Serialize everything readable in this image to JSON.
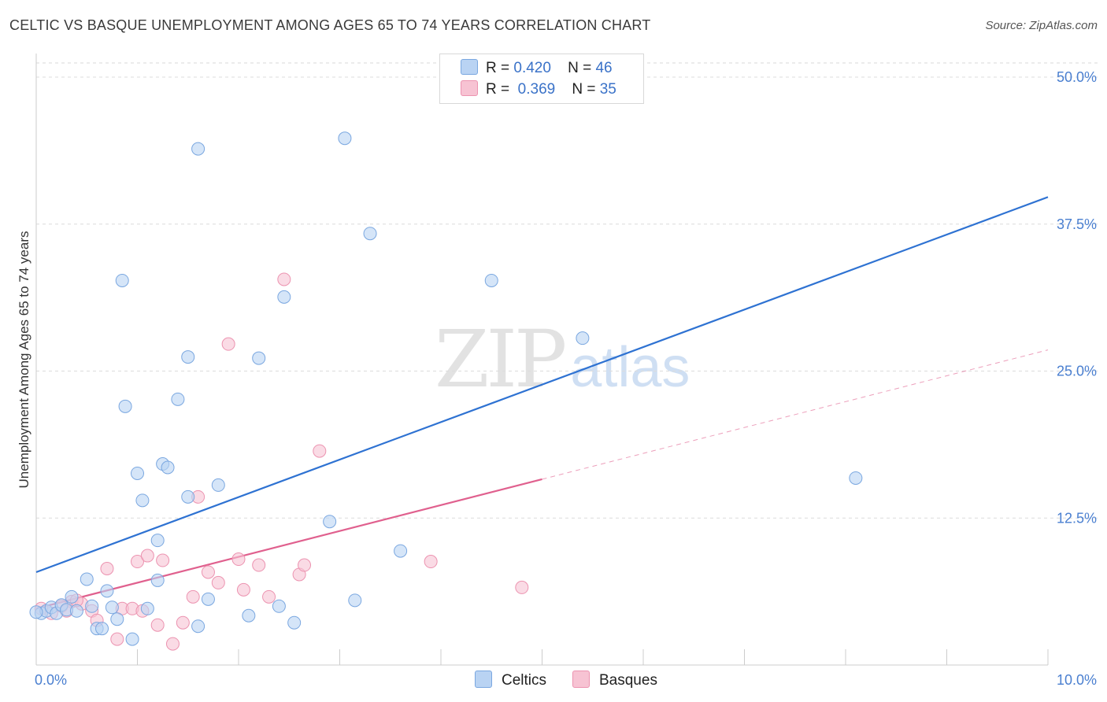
{
  "header": {
    "title": "CELTIC VS BASQUE UNEMPLOYMENT AMONG AGES 65 TO 74 YEARS CORRELATION CHART",
    "source": "Source: ZipAtlas.com"
  },
  "legend_top": {
    "rows": [
      {
        "r_label": "R =",
        "r_value": "0.420",
        "n_label": "N =",
        "n_value": "46"
      },
      {
        "r_label": "R =",
        "r_value": "0.369",
        "n_label": "N =",
        "n_value": "35"
      }
    ]
  },
  "legend_bottom": {
    "celtics": "Celtics",
    "basques": "Basques"
  },
  "watermark": {
    "zip": "ZIP",
    "atlas": "atlas"
  },
  "colors": {
    "celtics_fill": "#b9d3f3",
    "celtics_stroke": "#7aa7e0",
    "celtics_line": "#2e72d2",
    "basques_fill": "#f7c3d3",
    "basques_stroke": "#ec93b0",
    "basques_line": "#e0608e",
    "tick_text": "#4a7fd0"
  },
  "chart_data": {
    "type": "scatter",
    "title": "CELTIC VS BASQUE UNEMPLOYMENT AMONG AGES 65 TO 74 YEARS CORRELATION CHART",
    "xlabel": "",
    "ylabel": "Unemployment Among Ages 65 to 74 years",
    "xlim": [
      0,
      10
    ],
    "ylim": [
      0,
      50
    ],
    "x_tick_labels": [
      "0.0%",
      "10.0%"
    ],
    "y_ticks": [
      12.5,
      25.0,
      37.5,
      50.0
    ],
    "y_tick_labels": [
      "12.5%",
      "25.0%",
      "37.5%",
      "50.0%"
    ],
    "grid": true,
    "series": [
      {
        "name": "Celtics",
        "r": 0.42,
        "n": 46,
        "trend": {
          "x0": 0,
          "y0": 7.9,
          "x1": 10,
          "y1": 39.8
        },
        "points": [
          [
            0.05,
            4.4
          ],
          [
            0.1,
            4.6
          ],
          [
            0.15,
            4.9
          ],
          [
            0.2,
            4.4
          ],
          [
            0.25,
            5.1
          ],
          [
            0.3,
            4.7
          ],
          [
            0.35,
            5.8
          ],
          [
            0.4,
            4.6
          ],
          [
            0.5,
            7.3
          ],
          [
            0.55,
            5.0
          ],
          [
            0.6,
            3.1
          ],
          [
            0.65,
            3.1
          ],
          [
            0.7,
            6.3
          ],
          [
            0.75,
            4.9
          ],
          [
            0.8,
            3.9
          ],
          [
            0.85,
            32.7
          ],
          [
            0.88,
            22.0
          ],
          [
            0.95,
            2.2
          ],
          [
            1.0,
            16.3
          ],
          [
            1.05,
            14.0
          ],
          [
            1.1,
            4.8
          ],
          [
            1.2,
            7.2
          ],
          [
            1.2,
            10.6
          ],
          [
            1.25,
            17.1
          ],
          [
            1.3,
            16.8
          ],
          [
            1.4,
            22.6
          ],
          [
            1.5,
            26.2
          ],
          [
            1.5,
            14.3
          ],
          [
            1.6,
            3.3
          ],
          [
            1.6,
            43.9
          ],
          [
            1.7,
            5.6
          ],
          [
            1.8,
            15.3
          ],
          [
            2.1,
            4.2
          ],
          [
            2.2,
            26.1
          ],
          [
            2.4,
            5.0
          ],
          [
            2.45,
            31.3
          ],
          [
            2.55,
            3.6
          ],
          [
            2.9,
            12.2
          ],
          [
            3.05,
            44.8
          ],
          [
            3.15,
            5.5
          ],
          [
            3.3,
            36.7
          ],
          [
            3.6,
            9.7
          ],
          [
            4.5,
            32.7
          ],
          [
            5.4,
            27.8
          ],
          [
            8.1,
            15.9
          ],
          [
            0.0,
            4.5
          ]
        ]
      },
      {
        "name": "Basques",
        "r": 0.369,
        "n": 35,
        "trend": {
          "x0": 0,
          "y0": 4.8,
          "x1": 5.0,
          "y1": 15.8
        },
        "trend_dashed": {
          "x0": 5.0,
          "y0": 15.8,
          "x1": 10,
          "y1": 26.8
        },
        "points": [
          [
            0.05,
            4.8
          ],
          [
            0.15,
            4.4
          ],
          [
            0.25,
            5.0
          ],
          [
            0.35,
            5.4
          ],
          [
            0.45,
            5.2
          ],
          [
            0.55,
            4.6
          ],
          [
            0.6,
            3.8
          ],
          [
            0.7,
            8.2
          ],
          [
            0.8,
            2.2
          ],
          [
            0.85,
            4.8
          ],
          [
            0.95,
            4.8
          ],
          [
            1.0,
            8.8
          ],
          [
            1.05,
            4.6
          ],
          [
            1.1,
            9.3
          ],
          [
            1.2,
            3.4
          ],
          [
            1.25,
            8.9
          ],
          [
            1.35,
            1.8
          ],
          [
            1.45,
            3.6
          ],
          [
            1.55,
            5.8
          ],
          [
            1.6,
            14.3
          ],
          [
            1.7,
            7.9
          ],
          [
            1.8,
            7.0
          ],
          [
            1.9,
            27.3
          ],
          [
            2.0,
            9.0
          ],
          [
            2.05,
            6.4
          ],
          [
            2.2,
            8.5
          ],
          [
            2.3,
            5.8
          ],
          [
            2.45,
            32.8
          ],
          [
            2.6,
            7.7
          ],
          [
            2.65,
            8.5
          ],
          [
            2.8,
            18.2
          ],
          [
            3.9,
            8.8
          ],
          [
            4.8,
            6.6
          ],
          [
            0.3,
            4.6
          ],
          [
            0.4,
            5.5
          ]
        ]
      }
    ]
  }
}
